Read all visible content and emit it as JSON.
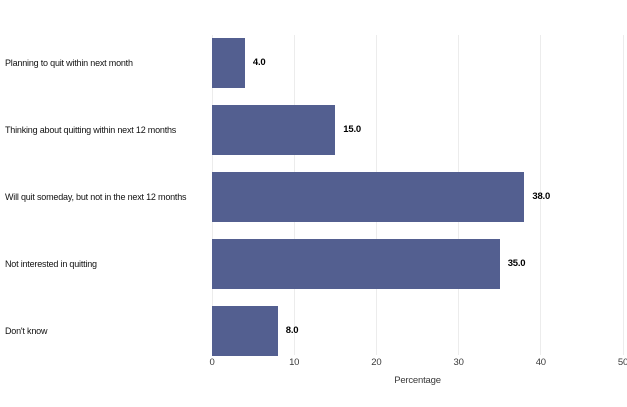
{
  "chart_data": {
    "type": "bar",
    "orientation": "horizontal",
    "title": "",
    "categories": [
      "Planning to quit within next month",
      "Thinking about quitting within next 12 months",
      "Will quit someday, but not in the next 12 months",
      "Not interested in quitting",
      "Don't know"
    ],
    "values": [
      4.0,
      15.0,
      38.0,
      35.0,
      8.0
    ],
    "value_labels": [
      "4.0",
      "15.0",
      "38.0",
      "35.0",
      "8.0"
    ],
    "xlabel": "Percentage",
    "ylabel": "",
    "xlim": [
      0,
      50
    ],
    "xticks": [
      0,
      10,
      20,
      30,
      40,
      50
    ],
    "xtick_labels": [
      "0",
      "10",
      "20",
      "30",
      "40",
      "50"
    ],
    "grid": "vertical-gridlines-on",
    "legend": "none",
    "colors": {
      "bar": "#535f90",
      "grid_line": "#ececec",
      "tick_text": "#3a3a3a",
      "category_text": "#111111",
      "value_text": "#000000",
      "background": "#ffffff"
    }
  }
}
